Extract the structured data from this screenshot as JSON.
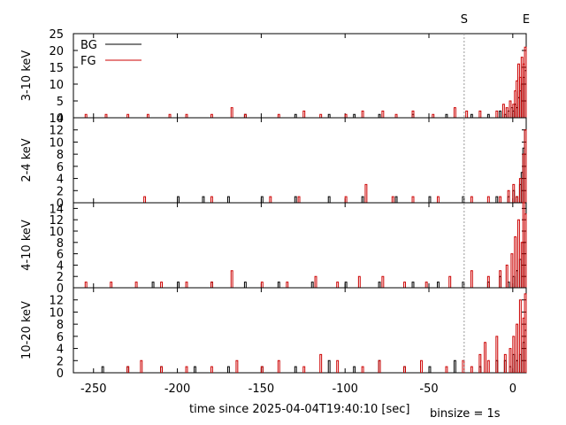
{
  "chart_data": {
    "type": "line",
    "xlabel": "time since 2025-04-04T19:40:10 [sec]",
    "binsize": "binsize = 1s",
    "xlim": [
      -262,
      8
    ],
    "xticks": [
      -250,
      -200,
      -150,
      -100,
      -50,
      0
    ],
    "markers": [
      {
        "label": "S",
        "x": -29
      },
      {
        "label": "E",
        "x": 8
      }
    ],
    "legend": {
      "placement": "top-left",
      "entries": [
        "BG",
        "FG"
      ]
    },
    "colors": {
      "BG": "#000000",
      "FG": "#cc0000",
      "marker": "#999999"
    },
    "panels": [
      {
        "ylabel": "3-10 keV",
        "ylim": [
          0,
          25
        ],
        "yticks": [
          0,
          5,
          10,
          15,
          20,
          25
        ],
        "series": [
          {
            "name": "BG",
            "x": [
              -160,
              -130,
              -110,
              -95,
              -80,
              -60,
              -40,
              -25,
              -15,
              -8,
              -5,
              -3,
              -1,
              0,
              1,
              2,
              3,
              4,
              5,
              6,
              7
            ],
            "y": [
              1,
              1,
              1,
              1,
              1,
              1,
              1,
              1,
              1,
              2,
              1,
              2,
              3,
              2,
              4,
              3,
              6,
              8,
              10,
              12,
              14
            ]
          },
          {
            "name": "FG",
            "x": [
              -255,
              -243,
              -230,
              -218,
              -205,
              -195,
              -180,
              -168,
              -160,
              -140,
              -125,
              -115,
              -100,
              -90,
              -78,
              -70,
              -60,
              -48,
              -35,
              -28,
              -20,
              -10,
              -6,
              -4,
              -2,
              0,
              1,
              2,
              3,
              4,
              5,
              6,
              7
            ],
            "y": [
              1,
              1,
              1,
              1,
              1,
              1,
              1,
              3,
              1,
              1,
              2,
              1,
              1,
              2,
              2,
              1,
              2,
              1,
              3,
              2,
              2,
              2,
              4,
              3,
              5,
              4,
              8,
              11,
              16,
              12,
              18,
              16,
              21
            ]
          }
        ]
      },
      {
        "ylabel": "2-4 keV",
        "ylim": [
          0,
          14
        ],
        "yticks": [
          0,
          2,
          4,
          6,
          8,
          10,
          12,
          14
        ],
        "series": [
          {
            "name": "BG",
            "x": [
              -200,
              -185,
              -170,
              -150,
              -130,
              -110,
              -90,
              -70,
              -50,
              -30,
              -10,
              -3,
              0,
              2,
              4,
              5,
              6,
              7
            ],
            "y": [
              1,
              1,
              1,
              1,
              1,
              1,
              1,
              1,
              1,
              1,
              1,
              1,
              2,
              1,
              3,
              5,
              9,
              12
            ]
          },
          {
            "name": "FG",
            "x": [
              -220,
              -180,
              -145,
              -128,
              -100,
              -88,
              -72,
              -60,
              -45,
              -25,
              -15,
              -8,
              -3,
              0,
              2,
              4,
              6,
              7
            ],
            "y": [
              1,
              1,
              1,
              1,
              1,
              3,
              1,
              1,
              1,
              1,
              1,
              1,
              2,
              3,
              1,
              4,
              8,
              12
            ]
          }
        ]
      },
      {
        "ylabel": "4-10 keV",
        "ylim": [
          0,
          15
        ],
        "yticks": [
          0,
          2,
          4,
          6,
          8,
          10,
          12,
          14
        ],
        "series": [
          {
            "name": "BG",
            "x": [
              -215,
              -200,
              -180,
              -160,
              -140,
              -120,
              -100,
              -80,
              -60,
              -45,
              -30,
              -15,
              -8,
              -3,
              0,
              2,
              4,
              6,
              7
            ],
            "y": [
              1,
              1,
              1,
              1,
              1,
              1,
              1,
              1,
              1,
              1,
              1,
              1,
              2,
              1,
              2,
              3,
              5,
              8,
              10
            ]
          },
          {
            "name": "FG",
            "x": [
              -255,
              -240,
              -225,
              -210,
              -195,
              -180,
              -168,
              -150,
              -135,
              -118,
              -105,
              -92,
              -78,
              -65,
              -52,
              -38,
              -25,
              -15,
              -8,
              -4,
              -1,
              1,
              3,
              5,
              6,
              7
            ],
            "y": [
              1,
              1,
              1,
              1,
              1,
              1,
              3,
              1,
              1,
              2,
              1,
              2,
              2,
              1,
              1,
              2,
              3,
              2,
              3,
              4,
              6,
              9,
              12,
              8,
              15,
              13
            ]
          }
        ]
      },
      {
        "ylabel": "10-20 keV",
        "ylim": [
          0,
          14
        ],
        "yticks": [
          0,
          2,
          4,
          6,
          8,
          10,
          12
        ],
        "series": [
          {
            "name": "BG",
            "x": [
              -245,
              -230,
              -210,
              -190,
              -170,
              -150,
              -130,
              -110,
              -95,
              -80,
              -65,
              -50,
              -35,
              -20,
              -10,
              -5,
              -2,
              0,
              2,
              4,
              6,
              7
            ],
            "y": [
              1,
              1,
              1,
              1,
              1,
              1,
              1,
              2,
              1,
              2,
              1,
              1,
              2,
              1,
              2,
              2,
              1,
              3,
              2,
              3,
              5,
              7
            ]
          },
          {
            "name": "FG",
            "x": [
              -230,
              -222,
              -210,
              -195,
              -180,
              -165,
              -150,
              -140,
              -125,
              -115,
              -105,
              -90,
              -80,
              -65,
              -55,
              -40,
              -30,
              -25,
              -20,
              -17,
              -15,
              -10,
              -5,
              -2,
              0,
              2,
              4,
              6,
              7
            ],
            "y": [
              1,
              2,
              1,
              1,
              1,
              2,
              1,
              2,
              1,
              3,
              2,
              1,
              2,
              1,
              2,
              1,
              2,
              1,
              3,
              5,
              2,
              6,
              3,
              4,
              6,
              8,
              12,
              9,
              13
            ]
          }
        ]
      }
    ]
  }
}
